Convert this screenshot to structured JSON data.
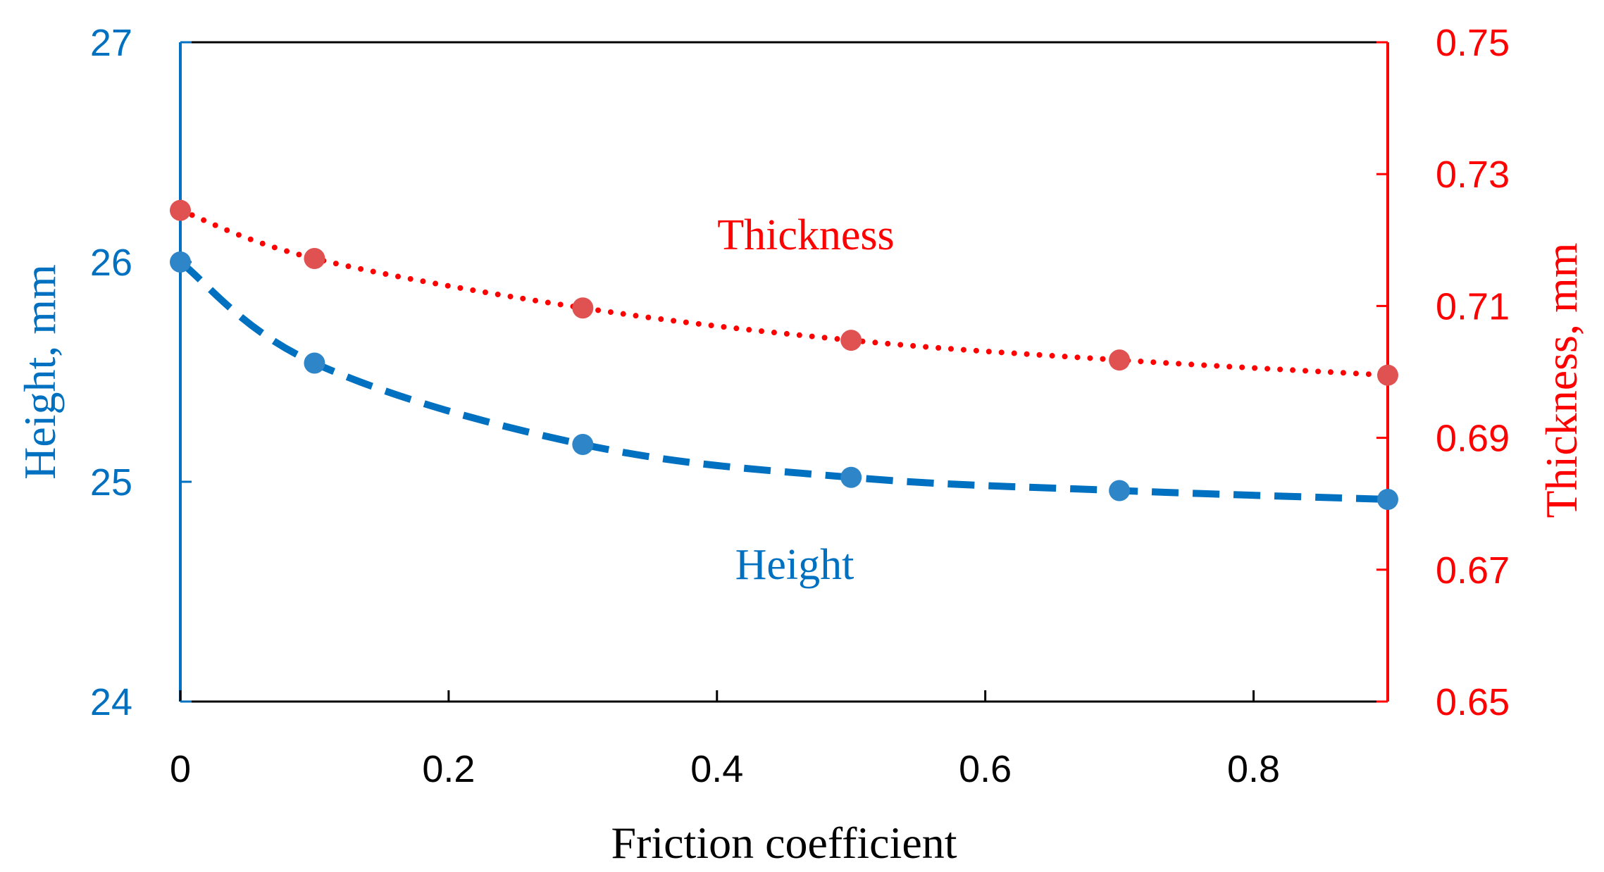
{
  "chart_data": {
    "type": "line",
    "xlabel": "Friction coefficient",
    "x_ticks": [
      "0",
      "0.2",
      "0.4",
      "0.6",
      "0.8"
    ],
    "xlim": [
      0,
      0.9
    ],
    "left_axis": {
      "label": "Height, mm",
      "ylim": [
        24,
        27
      ],
      "ticks": [
        "24",
        "25",
        "26",
        "27"
      ],
      "color": "#0070C0"
    },
    "right_axis": {
      "label": "Thickness, mm",
      "ylim": [
        0.65,
        0.75
      ],
      "ticks": [
        "0.65",
        "0.67",
        "0.69",
        "0.71",
        "0.73",
        "0.75"
      ],
      "color": "#FF0000"
    },
    "series": [
      {
        "name": "Height",
        "axis": "left",
        "line_style": "dashed",
        "line_color": "#0070C0",
        "marker_color": "#2E86C8",
        "x": [
          0,
          0.1,
          0.3,
          0.5,
          0.7,
          0.9
        ],
        "values": [
          26.0,
          25.54,
          25.17,
          25.02,
          24.96,
          24.92
        ]
      },
      {
        "name": "Thickness",
        "axis": "right",
        "line_style": "dotted",
        "line_color": "#FF0000",
        "marker_color": "#E05252",
        "x": [
          0,
          0.1,
          0.3,
          0.5,
          0.7,
          0.9
        ],
        "values": [
          0.7245,
          0.7172,
          0.7097,
          0.7048,
          0.7018,
          0.6995
        ]
      }
    ],
    "annotations": [
      {
        "text": "Thickness",
        "series": "Thickness"
      },
      {
        "text": "Height",
        "series": "Height"
      }
    ]
  }
}
